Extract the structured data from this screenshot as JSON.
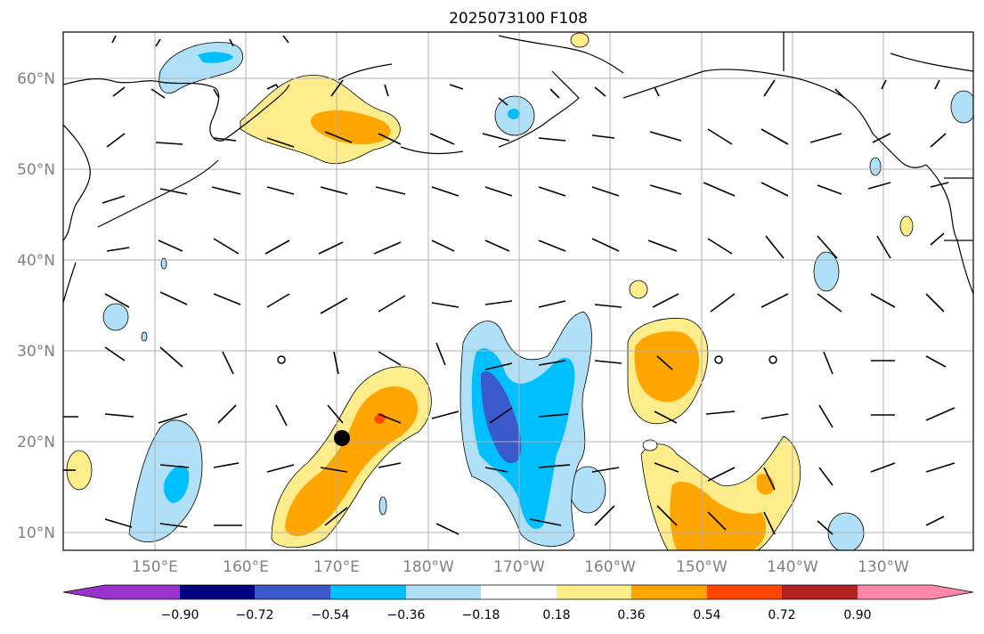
{
  "title": "2025073100 F108",
  "lat_labels": [
    "60°N",
    "50°N",
    "40°N",
    "30°N",
    "20°N",
    "10°N"
  ],
  "lon_labels": [
    "150°E",
    "160°E",
    "170°E",
    "180°W",
    "170°W",
    "160°W",
    "150°W",
    "140°W",
    "130°W"
  ],
  "colorbar": {
    "ticks": [
      "−0.90",
      "−0.72",
      "−0.54",
      "−0.36",
      "−0.18",
      "0.18",
      "0.36",
      "0.54",
      "0.72",
      "0.90"
    ],
    "colors": [
      "#9933cc",
      "#000080",
      "#3a5acb",
      "#00bfff",
      "#b0e0f8",
      "#ffffff",
      "#ffec8b",
      "#ffa500",
      "#ff4500",
      "#b22222",
      "#ff88aa"
    ]
  },
  "marker_label_colors": {
    "land": "#000000",
    "grid": "#b0b0b0"
  }
}
